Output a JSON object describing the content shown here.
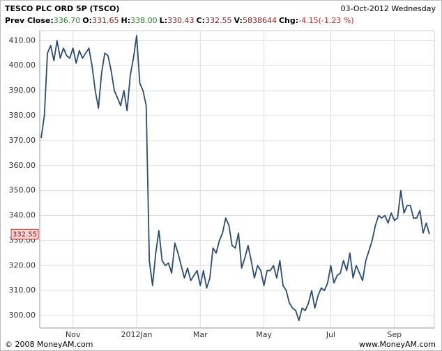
{
  "header": {
    "title": "TESCO PLC ORD 5P (TSCO)",
    "date": "03-Oct-2012 Wednesday",
    "stats": [
      {
        "label": "Prev Close:",
        "value": "336.70",
        "color": "#2e7d32"
      },
      {
        "label": "O:",
        "value": "331.65",
        "color": "#8b1a1a"
      },
      {
        "label": "H:",
        "value": "338.00",
        "color": "#2e7d32"
      },
      {
        "label": "L:",
        "value": "330.43",
        "color": "#8b1a1a"
      },
      {
        "label": "C:",
        "value": "332.55",
        "color": "#8b1a1a"
      },
      {
        "label": "V:",
        "value": "5838644",
        "color": "#8b1a1a"
      },
      {
        "label": "Chg:",
        "value": "-4.15(-1.23 %)",
        "color": "#c62828"
      }
    ]
  },
  "chart_data": {
    "type": "line",
    "color": "#2b4b72",
    "grid": true,
    "ylim": [
      295,
      414
    ],
    "yticks": [
      {
        "value": 300,
        "label": "300.00"
      },
      {
        "value": 310,
        "label": "310.00"
      },
      {
        "value": 320,
        "label": "320.00"
      },
      {
        "value": 330,
        "label": "330.00"
      },
      {
        "value": 340,
        "label": "340.00"
      },
      {
        "value": 350,
        "label": "350.00"
      },
      {
        "value": 360,
        "label": "360.00"
      },
      {
        "value": 370,
        "label": "370.00"
      },
      {
        "value": 380,
        "label": "380.00"
      },
      {
        "value": 390,
        "label": "390.00"
      },
      {
        "value": 400,
        "label": "400.00"
      },
      {
        "value": 410,
        "label": "410.00"
      }
    ],
    "categories": [
      null,
      null,
      null,
      null,
      null,
      null,
      null,
      null,
      null,
      null,
      "Nov",
      null,
      null,
      null,
      null,
      null,
      null,
      null,
      null,
      null,
      null,
      null,
      null,
      null,
      null,
      null,
      null,
      null,
      null,
      null,
      "2012Jan",
      null,
      null,
      null,
      null,
      null,
      null,
      null,
      null,
      null,
      null,
      null,
      null,
      null,
      null,
      null,
      null,
      null,
      null,
      null,
      "Mar",
      null,
      null,
      null,
      null,
      null,
      null,
      null,
      null,
      null,
      null,
      null,
      null,
      null,
      null,
      null,
      null,
      null,
      null,
      null,
      "May",
      null,
      null,
      null,
      null,
      null,
      null,
      null,
      null,
      null,
      null,
      null,
      null,
      null,
      null,
      null,
      null,
      null,
      null,
      null,
      null,
      "Jul",
      null,
      null,
      null,
      null,
      null,
      null,
      null,
      null,
      null,
      null,
      null,
      null,
      null,
      null,
      null,
      null,
      null,
      null,
      null,
      "Sep",
      null,
      null,
      null,
      null,
      null,
      null,
      null,
      null,
      null,
      null,
      null
    ],
    "values": [
      371,
      380,
      405,
      408,
      402,
      410,
      403,
      407,
      404,
      403,
      407,
      401,
      406,
      403,
      405,
      407,
      400,
      390,
      383,
      397,
      405,
      404,
      398,
      390,
      387,
      384,
      390,
      382,
      396,
      403,
      412,
      393,
      390,
      384,
      322,
      312,
      325,
      334,
      322,
      320,
      321,
      317,
      329,
      325,
      320,
      315,
      319,
      314,
      316,
      318,
      312,
      318,
      311,
      315,
      327,
      325,
      330,
      333,
      339,
      336,
      328,
      327,
      333,
      319,
      323,
      328,
      322,
      315,
      320,
      318,
      312,
      318,
      318,
      320,
      315,
      322,
      312,
      310,
      305,
      303,
      302,
      298,
      303,
      302,
      305,
      310,
      303,
      308,
      311,
      310,
      313,
      320,
      313,
      316,
      317,
      322,
      318,
      325,
      315,
      320,
      317,
      314,
      322,
      326,
      330,
      336,
      340,
      339,
      340,
      337,
      341,
      338,
      339,
      350,
      341,
      344,
      344,
      339,
      339,
      342,
      333,
      337,
      332.55
    ]
  },
  "footer": {
    "left": "© 2008 MoneyAM.com",
    "right": "www.MoneyAM.com"
  }
}
